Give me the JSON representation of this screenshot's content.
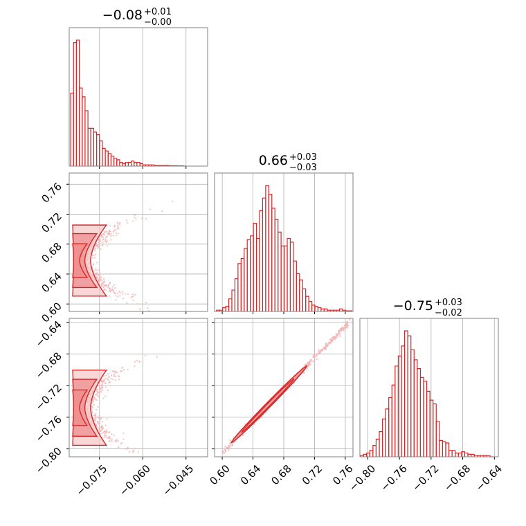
{
  "colors": {
    "primary": "#d62728",
    "grid": "#b0b0b0",
    "axes": "#808080",
    "scatter": "#f2b6b6",
    "fill_light": "#f7c6c6",
    "fill_dark": "#ee8a8a"
  },
  "chart_data": [
    {
      "type": "histogram",
      "panel": "diag-1",
      "title": {
        "value": "−0.08",
        "plus": "+0.01",
        "minus": "−0.00"
      },
      "xlim": [
        -0.0855,
        -0.0375
      ],
      "x": [
        -0.0845,
        -0.0835,
        -0.0825,
        -0.0815,
        -0.0805,
        -0.0795,
        -0.0785,
        -0.0775,
        -0.0765,
        -0.0755,
        -0.0745,
        -0.0735,
        -0.0725,
        -0.0715,
        -0.0705,
        -0.0695,
        -0.0685,
        -0.0675,
        -0.0665,
        -0.0655,
        -0.0645,
        -0.0635,
        -0.0625,
        -0.0615,
        -0.0605,
        -0.0595,
        -0.0585,
        -0.0575,
        -0.0565,
        -0.0555,
        -0.0545,
        -0.0535,
        -0.0525,
        -0.0515,
        -0.0505,
        -0.0495,
        -0.0485,
        -0.0475,
        -0.0465,
        -0.0455
      ],
      "counts": [
        0.58,
        0.98,
        1.0,
        0.62,
        0.55,
        0.44,
        0.3,
        0.3,
        0.27,
        0.25,
        0.2,
        0.14,
        0.12,
        0.1,
        0.08,
        0.06,
        0.05,
        0.03,
        0.02,
        0.03,
        0.03,
        0.04,
        0.03,
        0.03,
        0.02,
        0.01,
        0.01,
        0.01,
        0.01,
        0.005,
        0.005,
        0.005,
        0.005,
        0.005,
        0.003,
        0.003,
        0.003,
        0.002,
        0.002,
        0.0
      ],
      "xticks": [
        -0.075,
        -0.06,
        -0.045
      ],
      "grid": true
    },
    {
      "type": "histogram",
      "panel": "diag-2",
      "title": {
        "value": "0.66",
        "plus": "+0.03",
        "minus": "−0.03"
      },
      "xlim": [
        0.59,
        0.77
      ],
      "x": [
        0.5945,
        0.5985,
        0.6025,
        0.6065,
        0.6105,
        0.6145,
        0.6185,
        0.6225,
        0.6265,
        0.6305,
        0.6345,
        0.6385,
        0.6425,
        0.6465,
        0.6505,
        0.6545,
        0.6585,
        0.6625,
        0.6665,
        0.6705,
        0.6745,
        0.6785,
        0.6825,
        0.6865,
        0.6905,
        0.6945,
        0.6985,
        0.7025,
        0.7065,
        0.7105,
        0.7145,
        0.7185,
        0.7225,
        0.7265,
        0.7305,
        0.7345,
        0.7385,
        0.7425,
        0.7465,
        0.7505,
        0.7545,
        0.7585,
        0.7625,
        0.7665
      ],
      "counts": [
        0.01,
        0.01,
        0.03,
        0.04,
        0.1,
        0.17,
        0.26,
        0.38,
        0.42,
        0.5,
        0.57,
        0.6,
        0.7,
        0.58,
        0.8,
        0.9,
        1.0,
        0.93,
        0.82,
        0.73,
        0.63,
        0.52,
        0.52,
        0.58,
        0.55,
        0.4,
        0.3,
        0.25,
        0.18,
        0.12,
        0.08,
        0.05,
        0.04,
        0.03,
        0.02,
        0.02,
        0.01,
        0.01,
        0.01,
        0.01,
        0.02,
        0.01,
        0.005,
        0.005
      ],
      "xticks": [
        0.6,
        0.64,
        0.68,
        0.72,
        0.76
      ],
      "grid": true
    },
    {
      "type": "histogram",
      "panel": "diag-3",
      "title": {
        "value": "−0.75",
        "plus": "+0.03",
        "minus": "−0.02"
      },
      "xlim": [
        -0.81,
        -0.635
      ],
      "x": [
        -0.8075,
        -0.8035,
        -0.7995,
        -0.7955,
        -0.7915,
        -0.7875,
        -0.7835,
        -0.7795,
        -0.7755,
        -0.7715,
        -0.7675,
        -0.7635,
        -0.7595,
        -0.7555,
        -0.7515,
        -0.7475,
        -0.7435,
        -0.7395,
        -0.7355,
        -0.7315,
        -0.7275,
        -0.7235,
        -0.7195,
        -0.7155,
        -0.7115,
        -0.7075,
        -0.7035,
        -0.6995,
        -0.6955,
        -0.6915,
        -0.6875,
        -0.6835,
        -0.6795,
        -0.6755,
        -0.6715,
        -0.6675,
        -0.6635,
        -0.6595,
        -0.6555,
        -0.6515,
        -0.6475,
        -0.6435
      ],
      "counts": [
        0.01,
        0.02,
        0.03,
        0.05,
        0.09,
        0.14,
        0.2,
        0.3,
        0.38,
        0.47,
        0.57,
        0.72,
        0.8,
        0.88,
        1.0,
        0.96,
        0.85,
        0.77,
        0.7,
        0.63,
        0.6,
        0.52,
        0.45,
        0.42,
        0.28,
        0.13,
        0.12,
        0.11,
        0.05,
        0.05,
        0.03,
        0.03,
        0.04,
        0.03,
        0.02,
        0.02,
        0.01,
        0.01,
        0.01,
        0.01,
        0.01,
        0.0
      ],
      "xticks": [
        -0.8,
        -0.76,
        -0.72,
        -0.68,
        -0.64
      ],
      "grid": true
    },
    {
      "type": "scatter",
      "panel": "2d-x1-x2",
      "xlim": [
        -0.0855,
        -0.0375
      ],
      "ylim": [
        0.59,
        0.775
      ],
      "yticks": [
        0.6,
        0.64,
        0.68,
        0.72,
        0.76
      ],
      "shape": "horseshoe",
      "contours": 3,
      "grid": true
    },
    {
      "type": "scatter",
      "panel": "2d-x1-x3",
      "xlim": [
        -0.0855,
        -0.0375
      ],
      "ylim": [
        -0.81,
        -0.635
      ],
      "xticks": [
        -0.075,
        -0.06,
        -0.045
      ],
      "yticks": [
        -0.64,
        -0.68,
        -0.72,
        -0.76,
        -0.8
      ],
      "shape": "horseshoe",
      "contours": 3,
      "grid": true
    },
    {
      "type": "scatter",
      "panel": "2d-x2-x3",
      "xlim": [
        0.59,
        0.77
      ],
      "ylim": [
        -0.81,
        -0.635
      ],
      "xticks": [
        0.6,
        0.64,
        0.68,
        0.72,
        0.76
      ],
      "shape": "linear",
      "grid": true
    }
  ]
}
